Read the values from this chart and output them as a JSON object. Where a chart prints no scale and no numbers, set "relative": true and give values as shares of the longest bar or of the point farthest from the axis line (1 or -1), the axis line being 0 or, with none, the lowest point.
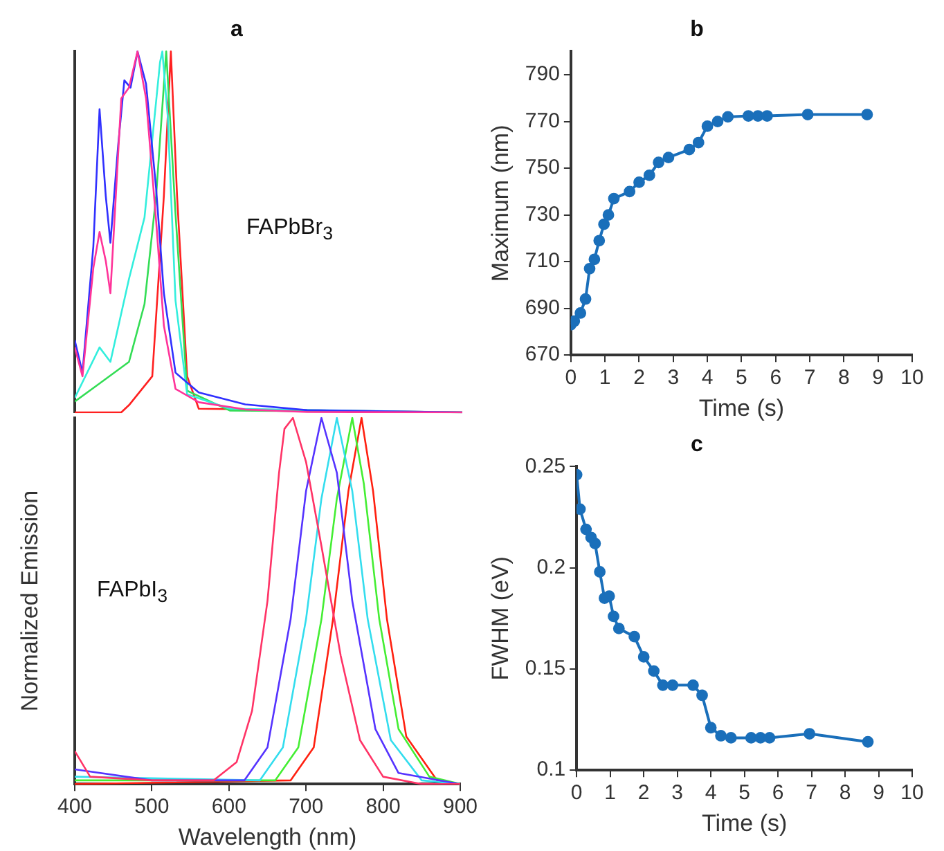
{
  "chart_data": [
    {
      "type": "line",
      "title": "a",
      "relative": true,
      "tick_labels": false,
      "xlim": [
        400,
        900
      ],
      "annotations": [
        "FAPbBr$_{3}$"
      ],
      "series": [
        {
          "color": "#ff3399",
          "x": [
            400,
            410,
            424,
            432,
            440,
            446,
            460,
            470,
            481,
            492,
            505,
            515,
            530,
            560,
            620,
            700,
            900
          ],
          "values": [
            0.18,
            0.1,
            0.4,
            0.5,
            0.42,
            0.33,
            0.87,
            0.9,
            1.0,
            0.87,
            0.53,
            0.24,
            0.065,
            0.028,
            0.008,
            0.001,
            0
          ]
        },
        {
          "color": "#3030ff",
          "x": [
            400,
            410,
            424,
            432,
            440,
            446,
            456,
            464,
            472,
            481,
            492,
            505,
            515,
            530,
            560,
            620,
            700,
            900
          ],
          "values": [
            0.2,
            0.11,
            0.46,
            0.84,
            0.6,
            0.47,
            0.74,
            0.92,
            0.9,
            1.0,
            0.91,
            0.62,
            0.33,
            0.11,
            0.055,
            0.022,
            0.006,
            0
          ]
        },
        {
          "color": "#33eedd",
          "x": [
            400,
            432,
            446,
            470,
            490,
            510,
            513,
            520,
            530,
            545,
            600,
            900
          ],
          "values": [
            0.04,
            0.18,
            0.14,
            0.37,
            0.54,
            0.97,
            1.0,
            0.82,
            0.31,
            0.05,
            0.01,
            0
          ]
        },
        {
          "color": "#33dd55",
          "x": [
            400,
            432,
            470,
            490,
            505,
            518,
            530,
            545,
            600,
            900
          ],
          "values": [
            0.03,
            0.08,
            0.14,
            0.3,
            0.6,
            1.0,
            0.55,
            0.06,
            0.005,
            0
          ]
        },
        {
          "color": "#ff2020",
          "x": [
            400,
            460,
            470,
            500,
            515,
            524,
            532,
            545,
            560,
            900
          ],
          "values": [
            0,
            0,
            0.02,
            0.1,
            0.6,
            1.0,
            0.6,
            0.1,
            0.01,
            0
          ]
        }
      ]
    },
    {
      "type": "line",
      "relative": true,
      "tick_labels": "x",
      "xlabel": "Wavelength (nm)",
      "ylabel": "Normalized Emission",
      "xlim": [
        400,
        900
      ],
      "xticks": [
        400,
        500,
        600,
        700,
        800,
        900
      ],
      "annotations": [
        "FAPbI$_{3}$"
      ],
      "series": [
        {
          "color": "#ff3366",
          "x": [
            400,
            420,
            500,
            580,
            610,
            630,
            650,
            665,
            672,
            683,
            700,
            720,
            745,
            770,
            800,
            850,
            900
          ],
          "values": [
            0.09,
            0.02,
            0.01,
            0.01,
            0.06,
            0.2,
            0.5,
            0.85,
            0.97,
            1.0,
            0.88,
            0.65,
            0.35,
            0.12,
            0.02,
            0,
            0
          ]
        },
        {
          "color": "#5533ff",
          "x": [
            400,
            500,
            620,
            650,
            680,
            700,
            720,
            740,
            760,
            790,
            820,
            900
          ],
          "values": [
            0.04,
            0.01,
            0.01,
            0.1,
            0.45,
            0.8,
            1.0,
            0.85,
            0.5,
            0.15,
            0.03,
            0
          ]
        },
        {
          "color": "#33ddee",
          "x": [
            400,
            640,
            670,
            700,
            720,
            740,
            760,
            780,
            810,
            850,
            900
          ],
          "values": [
            0.02,
            0.01,
            0.1,
            0.45,
            0.78,
            1.0,
            0.8,
            0.45,
            0.12,
            0.01,
            0
          ]
        },
        {
          "color": "#44ee33",
          "x": [
            400,
            660,
            690,
            720,
            740,
            760,
            775,
            795,
            820,
            860,
            900
          ],
          "values": [
            0.01,
            0.01,
            0.1,
            0.45,
            0.78,
            1.0,
            0.82,
            0.45,
            0.15,
            0.02,
            0
          ]
        },
        {
          "color": "#ff2010",
          "x": [
            400,
            680,
            710,
            735,
            755,
            772,
            787,
            805,
            830,
            870,
            900
          ],
          "values": [
            0,
            0.01,
            0.1,
            0.45,
            0.8,
            1.0,
            0.8,
            0.45,
            0.13,
            0.01,
            0
          ]
        }
      ]
    },
    {
      "type": "line",
      "title": "b",
      "xlabel": "Time (s)",
      "ylabel": "Maximum (nm)",
      "marker": "circle",
      "color": "#1a6fba",
      "xlim": [
        0,
        10
      ],
      "xticks": [
        0,
        1,
        2,
        3,
        4,
        5,
        6,
        7,
        8,
        9,
        10
      ],
      "ylim": [
        670,
        800
      ],
      "yticks": [
        670,
        690,
        710,
        730,
        750,
        770,
        790
      ],
      "x": [
        0,
        0.1,
        0.28,
        0.43,
        0.55,
        0.69,
        0.83,
        0.97,
        1.1,
        1.26,
        1.72,
        2.0,
        2.3,
        2.57,
        2.86,
        3.47,
        3.74,
        4.0,
        4.3,
        4.6,
        5.2,
        5.48,
        5.75,
        6.94,
        8.68
      ],
      "values": [
        683,
        684.5,
        688,
        694,
        707,
        711,
        719,
        726,
        730,
        737,
        740,
        744,
        747,
        752.5,
        754.6,
        758,
        761,
        768,
        770,
        772,
        772.4,
        772.4,
        772.4,
        773,
        773
      ]
    },
    {
      "type": "line",
      "title": "c",
      "xlabel": "Time (s)",
      "ylabel": "FWHM (eV)",
      "marker": "circle",
      "color": "#1a6fba",
      "xlim": [
        0,
        10
      ],
      "xticks": [
        0,
        1,
        2,
        3,
        4,
        5,
        6,
        7,
        8,
        9,
        10
      ],
      "ylim": [
        0.1,
        0.25
      ],
      "yticks": [
        0.1,
        0.15,
        0.2,
        0.25
      ],
      "x": [
        0,
        0.1,
        0.28,
        0.43,
        0.55,
        0.69,
        0.83,
        0.97,
        1.1,
        1.26,
        1.72,
        2.0,
        2.3,
        2.57,
        2.86,
        3.47,
        3.74,
        4.0,
        4.3,
        4.6,
        5.2,
        5.48,
        5.75,
        6.94,
        8.68
      ],
      "values": [
        0.246,
        0.229,
        0.219,
        0.215,
        0.212,
        0.198,
        0.185,
        0.186,
        0.176,
        0.17,
        0.166,
        0.156,
        0.149,
        0.142,
        0.142,
        0.142,
        0.137,
        0.121,
        0.117,
        0.116,
        0.116,
        0.116,
        0.116,
        0.118,
        0.114
      ]
    }
  ]
}
